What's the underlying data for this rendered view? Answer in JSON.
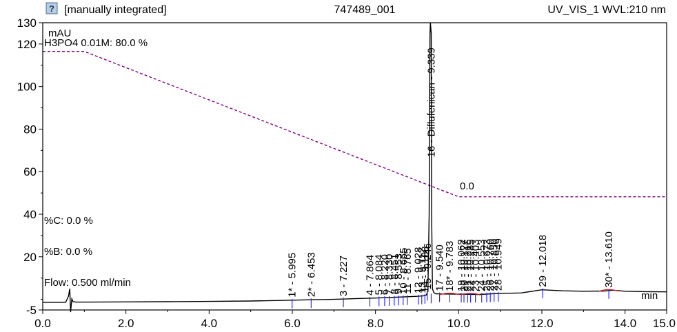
{
  "header": {
    "integration_status": "[manually integrated]",
    "sample_id": "747489_001",
    "channel": "UV_VIS_1 WVL:210 nm",
    "status_icon": "help-question-icon"
  },
  "chart_data": {
    "type": "line",
    "title": "",
    "xlabel": "min",
    "ylabel": "mAU",
    "xlim": [
      0.0,
      15.0
    ],
    "ylim": [
      -5,
      130
    ],
    "x_ticks": [
      0.0,
      2.0,
      4.0,
      6.0,
      8.0,
      10.0,
      12.0,
      14.0,
      15.0
    ],
    "x_tick_labels": [
      "0.0",
      "2.0",
      "4.0",
      "6.0",
      "8.0",
      "10.0",
      "12.0",
      "14.0",
      "15.0"
    ],
    "y_ticks": [
      -5,
      20,
      40,
      60,
      80,
      100,
      120,
      130
    ],
    "y_tick_labels": [
      "-5",
      "20",
      "40",
      "60",
      "80",
      "100",
      "120",
      "130"
    ],
    "grid": false,
    "series": [
      {
        "name": "H3PO4 0.01M",
        "style": "dashed",
        "color": "#800080",
        "x": [
          0.0,
          1.0,
          10.0,
          15.0
        ],
        "y": [
          116.5,
          116.5,
          48.2,
          48.2
        ]
      },
      {
        "name": "UV_VIS_1",
        "style": "solid",
        "color": "#000000",
        "x": [
          0.0,
          0.55,
          0.62,
          0.65,
          0.67,
          0.7,
          0.73,
          0.8,
          1.0,
          2.0,
          3.0,
          4.0,
          5.0,
          5.5,
          6.0,
          6.45,
          7.0,
          7.5,
          8.0,
          8.5,
          9.0,
          9.15,
          9.22,
          9.26,
          9.29,
          9.31,
          9.32,
          9.34,
          9.35,
          9.37,
          9.4,
          9.45,
          9.6,
          10.0,
          10.5,
          11.0,
          11.5,
          12.0,
          12.5,
          13.0,
          13.5,
          13.7,
          14.0,
          14.5,
          15.0
        ],
        "y": [
          -1.4,
          -1.4,
          1.5,
          5.0,
          -6.0,
          0.2,
          -1.1,
          -1.3,
          -1.3,
          -1.2,
          -1.1,
          -1.0,
          -0.8,
          -0.6,
          -0.4,
          -0.2,
          0.0,
          0.3,
          0.6,
          1.0,
          1.4,
          1.6,
          2.0,
          4.0,
          40.0,
          125.0,
          135.0,
          125.0,
          40.0,
          5.0,
          3.2,
          2.6,
          2.5,
          2.4,
          2.3,
          2.8,
          3.0,
          4.5,
          4.0,
          3.8,
          3.9,
          4.3,
          3.8,
          3.6,
          3.5
        ]
      }
    ],
    "peaks": [
      {
        "label": "1* - 5.995",
        "rt": 5.995
      },
      {
        "label": "2* - 6.453",
        "rt": 6.453
      },
      {
        "label": "3 - 7.227",
        "rt": 7.227
      },
      {
        "label": "4 - 7.864",
        "rt": 7.864
      },
      {
        "label": "5 - 8.084",
        "rt": 8.084
      },
      {
        "label": "6 - 8.220",
        "rt": 8.22
      },
      {
        "label": "7 - 8.330",
        "rt": 8.33
      },
      {
        "label": "8 - 8.451",
        "rt": 8.451
      },
      {
        "label": "9 - 8.553",
        "rt": 8.553
      },
      {
        "label": "10 - 8.665",
        "rt": 8.665
      },
      {
        "label": "11 - 8.765",
        "rt": 8.765
      },
      {
        "label": "12 - 9.028",
        "rt": 9.028
      },
      {
        "label": "13 - 9.112",
        "rt": 9.112
      },
      {
        "label": "14 - 9.188",
        "rt": 9.188
      },
      {
        "label": "15 - 9.246",
        "rt": 9.246
      },
      {
        "label": "16 - Diflufenican - 9.339",
        "rt": 9.339
      },
      {
        "label": "17 - 9.540",
        "rt": 9.54
      },
      {
        "label": "18* - 9.783",
        "rt": 9.783
      },
      {
        "label": "19 - 10.062",
        "rt": 10.062
      },
      {
        "label": "20 - 10.127",
        "rt": 10.127
      },
      {
        "label": "21 - 10.216",
        "rt": 10.216
      },
      {
        "label": "22 - 10.285",
        "rt": 10.285
      },
      {
        "label": "23 - 10.403",
        "rt": 10.403
      },
      {
        "label": "24 - 10.553",
        "rt": 10.553
      },
      {
        "label": "25 - 10.673",
        "rt": 10.673
      },
      {
        "label": "26 - 10.760",
        "rt": 10.76
      },
      {
        "label": "27 - 10.850",
        "rt": 10.85
      },
      {
        "label": "28 - 10.949",
        "rt": 10.949
      },
      {
        "label": "29 - 12.018",
        "rt": 12.018
      },
      {
        "label": "30* - 13.610",
        "rt": 13.61
      }
    ],
    "annotations": {
      "eluent_a": "H3PO4 0.01M: 80.0 %",
      "gradient_end_value": "0.0",
      "eluent_c": "%C: 0.0 %",
      "eluent_b": "%B: 0.0 %",
      "flow": "Flow: 0.500 ml/min",
      "y_unit": "mAU",
      "x_unit": "min"
    }
  }
}
